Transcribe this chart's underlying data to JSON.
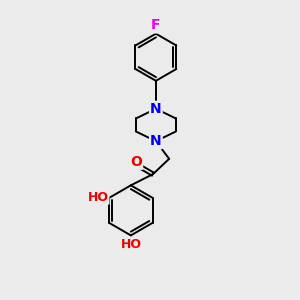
{
  "background_color": "#ebebeb",
  "bond_color": "#000000",
  "atom_colors": {
    "F": "#ee00ee",
    "N": "#0000ee",
    "O": "#ee0000",
    "C": "#000000"
  },
  "bond_lw": 1.4,
  "dbo": 0.055,
  "figsize": [
    3.0,
    3.0
  ],
  "dpi": 100
}
